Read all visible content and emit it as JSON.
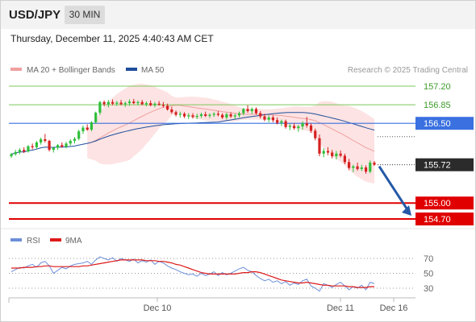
{
  "header": {
    "symbol": "USD/JPY",
    "timeframe": "30 MIN",
    "datetime": "Thursday, December 11, 2025 4:40:43 AM CET"
  },
  "legend": {
    "ma20_label": "MA 20 + Bollinger Bands",
    "ma50_label": "MA 50",
    "credit": "Research © 2025 Trading Central"
  },
  "rsi_legend": {
    "rsi_label": "RSI",
    "ma_label": "9MA"
  },
  "colors": {
    "candle_up": "#2fbf3a",
    "candle_down": "#d62020",
    "ma20": "#f0a0a0",
    "ma50": "#1f4e9c",
    "bollinger_fill": "#fde3e3",
    "resistance": "#7cc85a",
    "pivot": "#3a70e0",
    "support": "#e00000",
    "last_price": "#2b2b2b",
    "rsi": "#6d8fd9",
    "rsi_ma": "#dd1a1a",
    "arrow": "#2559a8"
  },
  "chart_data": [
    {
      "type": "candlestick",
      "title": "USD/JPY 30 MIN",
      "ylim": [
        154.5,
        157.3
      ],
      "x_tick_labels": [
        "Dec 10",
        "Dec 11",
        "Dec 16"
      ],
      "levels": [
        {
          "value": 157.2,
          "label": "157.20",
          "kind": "resistance"
        },
        {
          "value": 156.85,
          "label": "156.85",
          "kind": "resistance"
        },
        {
          "value": 156.5,
          "label": "156.50",
          "kind": "pivot"
        },
        {
          "value": 155.72,
          "label": "155.72",
          "kind": "last_price"
        },
        {
          "value": 155.0,
          "label": "155.00",
          "kind": "support"
        },
        {
          "value": 154.7,
          "label": "154.70",
          "kind": "support"
        }
      ],
      "forecast_arrow": {
        "from": 155.72,
        "to": 154.7
      },
      "candles": [
        [
          155.88,
          155.94,
          155.85,
          155.92
        ],
        [
          155.92,
          156.0,
          155.89,
          155.96
        ],
        [
          155.96,
          156.03,
          155.92,
          156.0
        ],
        [
          156.0,
          156.05,
          155.94,
          155.97
        ],
        [
          155.97,
          156.09,
          155.95,
          156.07
        ],
        [
          156.07,
          156.12,
          156.01,
          156.05
        ],
        [
          156.05,
          156.17,
          156.02,
          156.14
        ],
        [
          156.14,
          156.23,
          156.1,
          156.2
        ],
        [
          156.2,
          156.3,
          156.14,
          156.17
        ],
        [
          156.17,
          156.19,
          155.97,
          156.0
        ],
        [
          156.0,
          156.06,
          155.95,
          156.04
        ],
        [
          156.04,
          156.11,
          156.0,
          156.09
        ],
        [
          156.09,
          156.14,
          156.04,
          156.06
        ],
        [
          156.06,
          156.15,
          156.03,
          156.12
        ],
        [
          156.12,
          156.2,
          156.08,
          156.17
        ],
        [
          156.17,
          156.24,
          156.12,
          156.21
        ],
        [
          156.21,
          156.38,
          156.18,
          156.35
        ],
        [
          156.35,
          156.46,
          156.3,
          156.42
        ],
        [
          156.42,
          156.48,
          156.36,
          156.38
        ],
        [
          156.38,
          156.54,
          156.35,
          156.52
        ],
        [
          156.52,
          156.72,
          156.49,
          156.7
        ],
        [
          156.7,
          156.92,
          156.66,
          156.9
        ],
        [
          156.9,
          156.93,
          156.82,
          156.86
        ],
        [
          156.86,
          156.94,
          156.8,
          156.9
        ],
        [
          156.9,
          156.95,
          156.84,
          156.87
        ],
        [
          156.87,
          156.92,
          156.83,
          156.89
        ],
        [
          156.89,
          156.94,
          156.84,
          156.86
        ],
        [
          156.86,
          156.91,
          156.81,
          156.88
        ],
        [
          156.88,
          156.95,
          156.83,
          156.91
        ],
        [
          156.91,
          156.96,
          156.86,
          156.88
        ],
        [
          156.88,
          156.93,
          156.84,
          156.9
        ],
        [
          156.9,
          156.94,
          156.84,
          156.86
        ],
        [
          156.86,
          156.91,
          156.82,
          156.88
        ],
        [
          156.88,
          156.93,
          156.82,
          156.84
        ],
        [
          156.84,
          156.9,
          156.8,
          156.87
        ],
        [
          156.87,
          156.92,
          156.83,
          156.85
        ],
        [
          156.85,
          156.9,
          156.8,
          156.83
        ],
        [
          156.83,
          156.87,
          156.74,
          156.76
        ],
        [
          156.76,
          156.81,
          156.68,
          156.71
        ],
        [
          156.71,
          156.74,
          156.63,
          156.66
        ],
        [
          156.66,
          156.72,
          156.61,
          156.68
        ],
        [
          156.68,
          156.71,
          156.6,
          156.63
        ],
        [
          156.63,
          156.69,
          156.58,
          156.65
        ],
        [
          156.65,
          156.69,
          156.59,
          156.62
        ],
        [
          156.62,
          156.68,
          156.58,
          156.64
        ],
        [
          156.64,
          156.7,
          156.6,
          156.67
        ],
        [
          156.67,
          156.72,
          156.62,
          156.64
        ],
        [
          156.64,
          156.69,
          156.6,
          156.66
        ],
        [
          156.66,
          156.71,
          156.62,
          156.68
        ],
        [
          156.68,
          156.73,
          156.63,
          156.66
        ],
        [
          156.66,
          156.69,
          156.58,
          156.61
        ],
        [
          156.61,
          156.7,
          156.57,
          156.67
        ],
        [
          156.67,
          156.71,
          156.6,
          156.63
        ],
        [
          156.63,
          156.68,
          156.58,
          156.65
        ],
        [
          156.65,
          156.72,
          156.61,
          156.69
        ],
        [
          156.69,
          156.79,
          156.65,
          156.77
        ],
        [
          156.77,
          156.84,
          156.7,
          156.73
        ],
        [
          156.73,
          156.8,
          156.68,
          156.77
        ],
        [
          156.77,
          156.8,
          156.66,
          156.69
        ],
        [
          156.69,
          156.73,
          156.59,
          156.63
        ],
        [
          156.63,
          156.68,
          156.54,
          156.57
        ],
        [
          156.57,
          156.65,
          156.52,
          156.61
        ],
        [
          156.61,
          156.65,
          156.52,
          156.56
        ],
        [
          156.56,
          156.61,
          156.48,
          156.51
        ],
        [
          156.51,
          156.57,
          156.45,
          156.54
        ],
        [
          156.54,
          156.57,
          156.4,
          156.43
        ],
        [
          156.43,
          156.49,
          156.37,
          156.45
        ],
        [
          156.45,
          156.5,
          156.38,
          156.41
        ],
        [
          156.41,
          156.47,
          156.34,
          156.44
        ],
        [
          156.44,
          156.54,
          156.38,
          156.5
        ],
        [
          156.5,
          156.62,
          156.42,
          156.46
        ],
        [
          156.46,
          156.5,
          156.32,
          156.36
        ],
        [
          156.36,
          156.4,
          156.18,
          156.22
        ],
        [
          156.22,
          156.29,
          155.88,
          155.93
        ],
        [
          155.93,
          156.03,
          155.86,
          155.98
        ],
        [
          155.98,
          156.05,
          155.9,
          155.95
        ],
        [
          155.95,
          156.0,
          155.84,
          155.88
        ],
        [
          155.88,
          155.98,
          155.82,
          155.93
        ],
        [
          155.93,
          155.99,
          155.86,
          155.89
        ],
        [
          155.89,
          155.93,
          155.73,
          155.77
        ],
        [
          155.77,
          155.83,
          155.62,
          155.66
        ],
        [
          155.66,
          155.72,
          155.58,
          155.69
        ],
        [
          155.69,
          155.76,
          155.61,
          155.64
        ],
        [
          155.64,
          155.72,
          155.6,
          155.67
        ],
        [
          155.67,
          155.71,
          155.55,
          155.59
        ],
        [
          155.59,
          155.8,
          155.56,
          155.76
        ],
        [
          155.76,
          155.79,
          155.7,
          155.72
        ]
      ],
      "ma20_note": "MA 20 with Bollinger Bands envelope",
      "ma50_note": "MA 50"
    },
    {
      "type": "line",
      "title": "RSI",
      "ylim": [
        20,
        80
      ],
      "y_tick_labels": [
        "70",
        "50",
        "30"
      ],
      "y_ticks": [
        70,
        50,
        30
      ],
      "series": [
        {
          "name": "RSI",
          "values": [
            52,
            55,
            58,
            57,
            60,
            62,
            58,
            64,
            66,
            60,
            50,
            54,
            58,
            56,
            60,
            62,
            63,
            64,
            66,
            62,
            68,
            72,
            70,
            68,
            71,
            66,
            70,
            68,
            66,
            69,
            64,
            67,
            65,
            68,
            62,
            66,
            64,
            60,
            57,
            55,
            52,
            50,
            48,
            49,
            46,
            50,
            47,
            49,
            52,
            47,
            51,
            48,
            50,
            53,
            56,
            58,
            54,
            52,
            47,
            43,
            40,
            42,
            38,
            40,
            36,
            39,
            34,
            37,
            35,
            40,
            42,
            33,
            30,
            26,
            36,
            34,
            31,
            35,
            38,
            33,
            28,
            32,
            30,
            34,
            28,
            38,
            36
          ]
        },
        {
          "name": "9MA",
          "values": [
            57,
            57,
            57,
            58,
            58,
            58,
            59,
            59,
            60,
            60,
            59,
            59,
            59,
            59,
            59,
            59,
            59,
            60,
            60,
            61,
            62,
            63,
            64,
            65,
            66,
            67,
            68,
            68,
            68,
            68,
            68,
            68,
            67,
            67,
            67,
            66,
            66,
            65,
            64,
            62,
            61,
            59,
            57,
            55,
            53,
            51,
            50,
            49,
            49,
            49,
            49,
            49,
            49,
            49,
            50,
            51,
            51,
            52,
            52,
            51,
            49,
            47,
            45,
            43,
            41,
            40,
            39,
            38,
            37,
            37,
            38,
            37,
            36,
            35,
            34,
            34,
            33,
            33,
            33,
            33,
            32,
            32,
            31,
            31,
            31,
            32,
            32
          ]
        }
      ]
    }
  ]
}
